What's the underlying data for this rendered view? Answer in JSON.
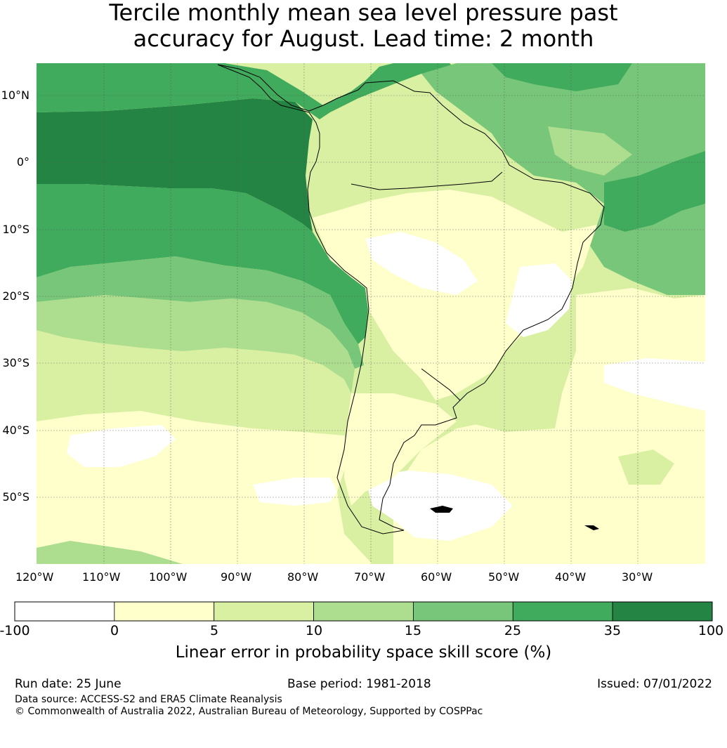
{
  "title": {
    "line1": "Tercile monthly mean sea level pressure past",
    "line2": "accuracy for August. Lead time: 2 month"
  },
  "map": {
    "lat_labels": [
      "10°N",
      "0°",
      "10°S",
      "20°S",
      "30°S",
      "40°S",
      "50°S"
    ],
    "lon_labels": [
      "120°W",
      "110°W",
      "100°W",
      "90°W",
      "80°W",
      "70°W",
      "60°W",
      "50°W",
      "40°W",
      "30°W"
    ],
    "extent": {
      "lon_min": -120,
      "lon_max": -20,
      "lat_min": -60,
      "lat_max": 15
    },
    "ocean_base_color": "#bddfa0",
    "land_outline_color": "#000000"
  },
  "colorbar": {
    "bins": [
      {
        "from": "-100",
        "to": "0",
        "color": "#ffffff"
      },
      {
        "from": "0",
        "to": "5",
        "color": "#ffffcc"
      },
      {
        "from": "5",
        "to": "10",
        "color": "#d9f0a3"
      },
      {
        "from": "10",
        "to": "15",
        "color": "#addd8e"
      },
      {
        "from": "15",
        "to": "25",
        "color": "#78c679"
      },
      {
        "from": "25",
        "to": "35",
        "color": "#41ab5d"
      },
      {
        "from": "35",
        "to": "100",
        "color": "#238443"
      }
    ],
    "tick_labels": [
      "-100",
      "0",
      "5",
      "10",
      "15",
      "25",
      "35",
      "100"
    ],
    "label": "Linear error in probability space skill score (%)"
  },
  "footer": {
    "run_date": "Run date: 25 June",
    "base_period": "Base period: 1981-2018",
    "issued": "Issued: 07/01/2022",
    "data_source": "Data source: ACCESS-S2 and ERA5 Climate Reanalysis",
    "copyright": "© Commonwealth of Australia 2022, Australian Bureau of Meteorology, Supported by COSPPac"
  }
}
